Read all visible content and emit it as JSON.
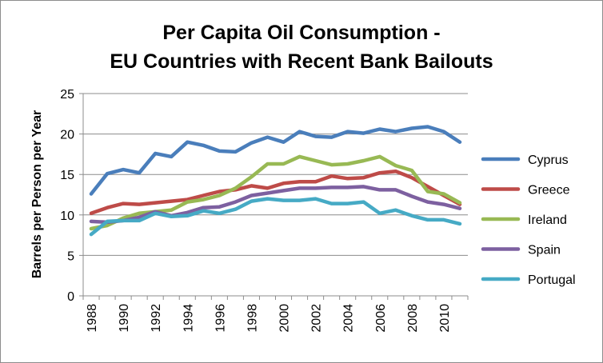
{
  "chart_data": {
    "type": "line",
    "title": "Per Capita Oil Consumption -",
    "subtitle": "EU Countries with Recent Bank Bailouts",
    "xlabel": "",
    "ylabel": "Barrels per Person per Year",
    "ylim": [
      0,
      25
    ],
    "yticks": [
      "0",
      "5",
      "10",
      "15",
      "20",
      "25"
    ],
    "xtick_labels": [
      "1988",
      "1990",
      "1992",
      "1994",
      "1996",
      "1998",
      "2000",
      "2002",
      "2004",
      "2006",
      "2008",
      "2010"
    ],
    "x": [
      1988,
      1989,
      1990,
      1991,
      1992,
      1993,
      1994,
      1995,
      1996,
      1997,
      1998,
      1999,
      2000,
      2001,
      2002,
      2003,
      2004,
      2005,
      2006,
      2007,
      2008,
      2009,
      2010,
      2011
    ],
    "grid": "horizontal",
    "legend_position": "right",
    "series": [
      {
        "name": "Cyprus",
        "color": "#4a7ebb",
        "values": [
          12.6,
          15.1,
          15.6,
          15.2,
          17.6,
          17.2,
          19.0,
          18.6,
          17.9,
          17.8,
          18.9,
          19.6,
          19.0,
          20.3,
          19.7,
          19.6,
          20.3,
          20.1,
          20.6,
          20.3,
          20.7,
          20.9,
          20.3,
          19.0
        ]
      },
      {
        "name": "Greece",
        "color": "#be4b48",
        "values": [
          10.2,
          10.9,
          11.4,
          11.3,
          11.5,
          11.7,
          11.9,
          12.4,
          12.9,
          13.1,
          13.6,
          13.3,
          13.9,
          14.1,
          14.1,
          14.8,
          14.5,
          14.6,
          15.2,
          15.4,
          14.6,
          13.5,
          12.4,
          11.3
        ]
      },
      {
        "name": "Ireland",
        "color": "#98b954",
        "values": [
          8.3,
          8.7,
          9.6,
          10.2,
          10.4,
          10.6,
          11.6,
          11.9,
          12.4,
          13.3,
          14.7,
          16.3,
          16.3,
          17.2,
          16.7,
          16.2,
          16.3,
          16.7,
          17.2,
          16.1,
          15.5,
          12.9,
          12.6,
          11.5
        ]
      },
      {
        "name": "Spain",
        "color": "#7d60a0",
        "values": [
          9.2,
          9.1,
          9.3,
          9.7,
          10.4,
          9.9,
          10.3,
          10.9,
          11.0,
          11.6,
          12.4,
          12.7,
          13.0,
          13.3,
          13.3,
          13.4,
          13.4,
          13.5,
          13.1,
          13.1,
          12.3,
          11.6,
          11.3,
          10.8
        ]
      },
      {
        "name": "Portugal",
        "color": "#46aac5",
        "values": [
          7.6,
          9.2,
          9.3,
          9.3,
          10.2,
          9.8,
          9.9,
          10.5,
          10.2,
          10.7,
          11.7,
          12.0,
          11.8,
          11.8,
          12.0,
          11.4,
          11.4,
          11.6,
          10.2,
          10.6,
          9.9,
          9.4,
          9.4,
          8.9
        ]
      }
    ]
  }
}
